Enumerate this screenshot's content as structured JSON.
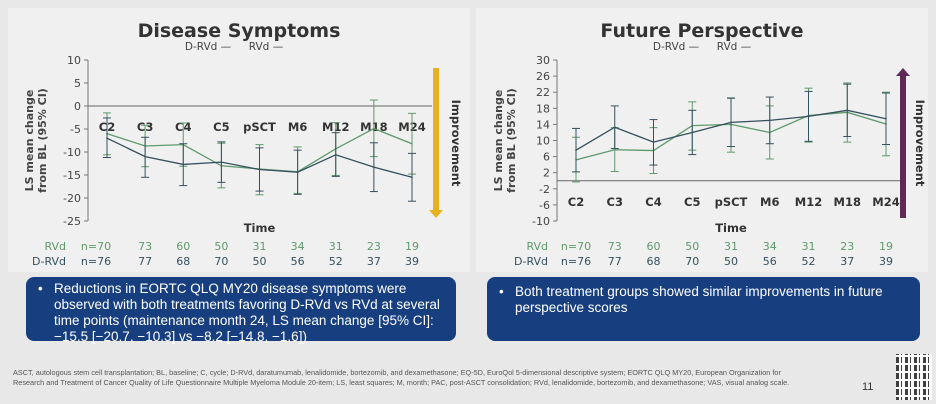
{
  "panels": [
    {
      "title": "Disease Symptoms",
      "legend": [
        "D-RVd —",
        "RVd —"
      ],
      "arrow_label": "Improvement",
      "arrow_color": "#e7b21c",
      "arrow_dir": "down"
    },
    {
      "title": "Future Perspective",
      "legend": [
        "D-RVd —",
        "RVd —"
      ],
      "arrow_label": "Improvement",
      "arrow_color": "#5e2a55",
      "arrow_dir": "up"
    }
  ],
  "chart_data": [
    {
      "type": "line",
      "ylabel": "LS mean change from BL (95% CI)",
      "xlabel": "Time",
      "ylim": [
        -25,
        10
      ],
      "yticks": [
        10,
        5,
        0,
        -5,
        -10,
        -15,
        -20,
        -25
      ],
      "categories": [
        "C2",
        "C3",
        "C4",
        "C5",
        "pSCT",
        "M6",
        "M12",
        "M18",
        "M24"
      ],
      "series": [
        {
          "name": "D-RVd",
          "color": "#34505e",
          "values": [
            -7,
            -11,
            -12.7,
            -12.2,
            -13.8,
            -14.4,
            -10.6,
            -13.3,
            -15.5
          ],
          "ci_low": [
            -11.2,
            -15.5,
            -17.3,
            -16.6,
            -18.5,
            -19.2,
            -15.3,
            -18.6,
            -20.7
          ],
          "ci_high": [
            -2.6,
            -6.8,
            -8.2,
            -7.8,
            -9.1,
            -9.6,
            -5.8,
            -8,
            -10.3
          ]
        },
        {
          "name": "RVd",
          "color": "#5e9a6c",
          "values": [
            -6,
            -8.7,
            -8.4,
            -13,
            -13.7,
            -14.3,
            -9.3,
            -4.9,
            -8.2
          ],
          "ci_low": [
            -10.6,
            -13.2,
            -13.1,
            -17.8,
            -19.3,
            -19,
            -15.1,
            -11,
            -14.8
          ],
          "ci_high": [
            -1.5,
            -4.2,
            -3.7,
            -8.1,
            -8.4,
            -8.9,
            -3.6,
            1.3,
            -1.6
          ]
        }
      ],
      "n_at_risk": {
        "RVd": [
          "n=70",
          "73",
          "60",
          "50",
          "31",
          "34",
          "31",
          "23",
          "19"
        ],
        "D-RVd": [
          "n=76",
          "77",
          "68",
          "70",
          "50",
          "56",
          "52",
          "37",
          "39"
        ]
      }
    },
    {
      "type": "line",
      "ylabel": "LS mean change from BL (95% CI)",
      "xlabel": "Time",
      "ylim": [
        -10,
        30
      ],
      "yticks": [
        30,
        26,
        22,
        18,
        14,
        10,
        6,
        2,
        -2,
        -6,
        -10
      ],
      "categories": [
        "C2",
        "C3",
        "C4",
        "C5",
        "pSCT",
        "M6",
        "M12",
        "M18",
        "M24"
      ],
      "series": [
        {
          "name": "D-RVd",
          "color": "#34505e",
          "values": [
            7.6,
            13.3,
            9.6,
            12,
            14.5,
            15,
            16,
            17.5,
            15.4
          ],
          "ci_low": [
            2.2,
            8,
            3.9,
            6.5,
            8.5,
            9.2,
            9.8,
            11,
            9
          ],
          "ci_high": [
            13,
            18.6,
            15.2,
            17.5,
            20.5,
            20.8,
            22.2,
            24,
            21.8
          ]
        },
        {
          "name": "RVd",
          "color": "#5e9a6c",
          "values": [
            5.2,
            7.7,
            7.5,
            13.7,
            14,
            12,
            16.2,
            17,
            14.1
          ],
          "ci_low": [
            -0.3,
            2.3,
            1.8,
            7.6,
            7.1,
            5.4,
            9.6,
            9.6,
            6.2
          ],
          "ci_high": [
            10.8,
            13.2,
            13.2,
            19.6,
            20.6,
            18.6,
            23,
            24.3,
            22
          ]
        }
      ],
      "n_at_risk": {
        "RVd": [
          "n=70",
          "73",
          "60",
          "50",
          "31",
          "34",
          "31",
          "23",
          "19"
        ],
        "D-RVd": [
          "n=76",
          "77",
          "68",
          "70",
          "50",
          "56",
          "52",
          "37",
          "39"
        ]
      }
    }
  ],
  "boxes": [
    "Reductions in EORTC QLQ MY20 disease symptoms were observed with both treatments favoring D-RVd vs RVd at several time points (maintenance month 24, LS mean change [95% CI]: −15.5 [−20.7, −10.3] vs −8.2 [−14.8, −1.6])",
    "Both treatment groups showed similar improvements in future perspective scores"
  ],
  "footnote": "ASCT, autologous stem cell transplantation; BL, baseline; C, cycle; D-RVd, daratumumab, lenalidomide, bortezomib, and dexamethasone; EQ-5D, EuroQol 5-dimensional descriptive system; EORTC QLQ MY20, European Organization for Research and Treatment of Cancer Quality of Life Questionnaire Multiple Myeloma Module 20-item; LS, least squares; M, month; PAC, post-ASCT consolidation; RVd, lenalidomide, bortezomib, and dexamethasone; VAS, visual analog scale.",
  "page_number": "11"
}
